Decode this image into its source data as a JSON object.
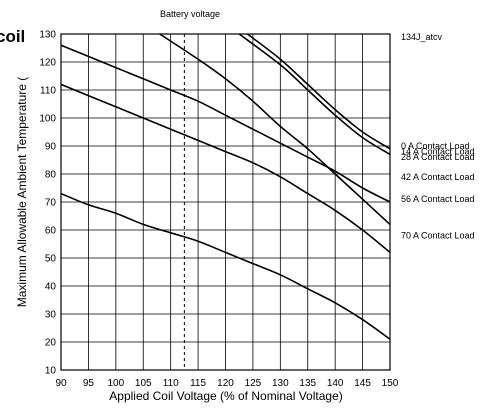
{
  "chart_data": {
    "type": "line",
    "title_fragment": "coil",
    "top_label": "Battery voltage",
    "corner_label": "134J_atcv",
    "xlabel": "Applied Coil Voltage (% of Nominal Voltage)",
    "ylabel": "Maximum Allowable Ambient Temperature (",
    "xlim": [
      90,
      150
    ],
    "ylim": [
      10,
      130
    ],
    "x_ticks": [
      "90",
      "95",
      "100",
      "105",
      "110",
      "115",
      "120",
      "125",
      "130",
      "135",
      "140",
      "145",
      "150"
    ],
    "y_ticks": [
      "10",
      "20",
      "30",
      "40",
      "50",
      "60",
      "70",
      "80",
      "90",
      "100",
      "110",
      "120",
      "130"
    ],
    "grid": true,
    "reference_line_x": 112.5,
    "series": [
      {
        "name": "0 A Contact Load",
        "x": [
          124,
          130,
          135,
          140,
          145,
          150
        ],
        "y": [
          130,
          121,
          112,
          103,
          95,
          89
        ]
      },
      {
        "name": "14 A Contact Load",
        "x": [
          122.5,
          130,
          135,
          140,
          145,
          150
        ],
        "y": [
          130,
          119,
          110,
          101,
          93,
          87
        ]
      },
      {
        "name": "28 A Contact Load",
        "x": [
          108,
          115,
          120,
          125,
          130,
          135,
          140,
          145,
          150
        ],
        "y": [
          130,
          121,
          114,
          106,
          97,
          89,
          80,
          71,
          62
        ]
      },
      {
        "name": "42 A Contact Load",
        "x": [
          90,
          95,
          100,
          105,
          110,
          115,
          120,
          125,
          130,
          135,
          140,
          145,
          150
        ],
        "y": [
          126,
          122,
          118,
          114,
          110,
          106,
          101,
          96,
          91,
          86,
          81,
          75,
          70
        ]
      },
      {
        "name": "56 A Contact Load",
        "x": [
          90,
          95,
          100,
          105,
          110,
          115,
          120,
          125,
          130,
          135,
          140,
          145,
          150
        ],
        "y": [
          112,
          108,
          104,
          100,
          96,
          92,
          88,
          84,
          79,
          73,
          67,
          60,
          52
        ]
      },
      {
        "name": "70 A Contact Load",
        "x": [
          90,
          95,
          100,
          105,
          110,
          115,
          120,
          125,
          130,
          135,
          140,
          145,
          150
        ],
        "y": [
          73,
          69,
          66,
          62,
          59,
          56,
          52,
          48,
          44,
          39,
          34,
          28,
          21
        ]
      }
    ],
    "labels_y": [
      90,
      88,
      86,
      79,
      71,
      58
    ]
  }
}
